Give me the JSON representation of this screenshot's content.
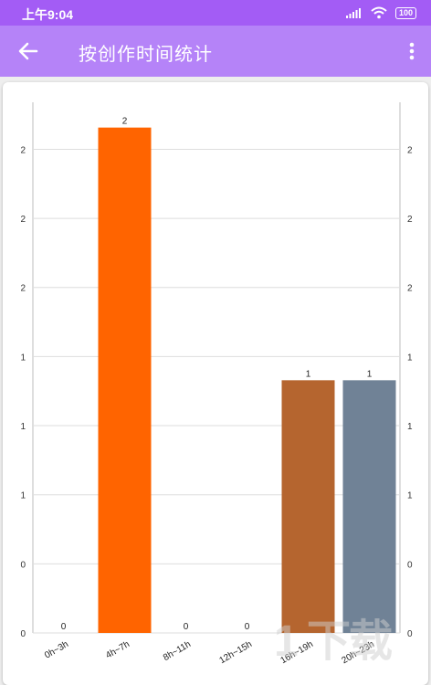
{
  "status": {
    "time": "上午9:04",
    "battery": "100"
  },
  "appbar": {
    "title": "按创作时间统计"
  },
  "watermark": "1  下载",
  "colors": {
    "statusbar": "#a35cf5",
    "appbar": "#b583f8"
  },
  "chart_data": {
    "type": "bar",
    "categories": [
      "0h~3h",
      "4h~7h",
      "8h~11h",
      "12h~15h",
      "16h~19h",
      "20h~23h"
    ],
    "values": [
      0,
      2,
      0,
      0,
      1,
      1
    ],
    "value_labels": [
      "0",
      "2",
      "0",
      "0",
      "1",
      "1"
    ],
    "colors": [
      "#ff6d00",
      "#ff6400",
      "#c0c0c0",
      "#c0c0c0",
      "#b5652f",
      "#708296"
    ],
    "left_axis_tick_labels": [
      "0",
      "0",
      "1",
      "1",
      "1",
      "2",
      "2",
      "2"
    ],
    "right_axis_tick_labels": [
      "0",
      "0",
      "1",
      "1",
      "1",
      "2",
      "2",
      "2"
    ],
    "ylim": [
      0,
      2.1
    ],
    "grid": true,
    "title": "",
    "xlabel": "",
    "ylabel": ""
  }
}
